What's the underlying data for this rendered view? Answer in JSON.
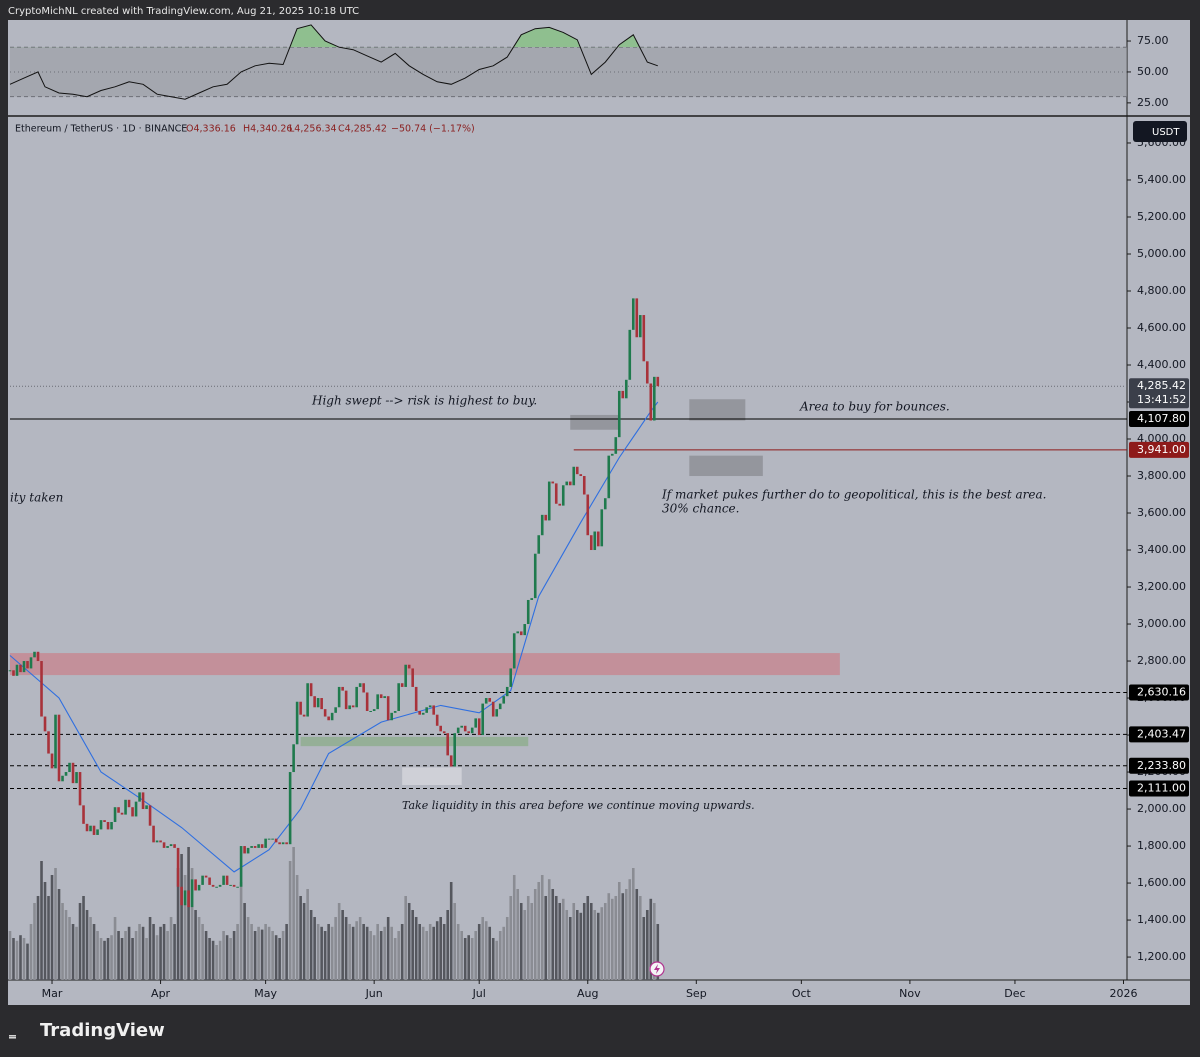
{
  "chart_data": {
    "type": "candlestick",
    "header": "CryptoMichNL created with TradingView.com, Aug 21, 2025 10:18 UTC",
    "symbol": "Ethereum / TetherUS · 1D · BINANCE",
    "ohlc_legend": {
      "open": "O4,336.16",
      "high": "H4,340.26",
      "low": "L4,256.34",
      "close": "C4,285.42",
      "change": "−50.74 (−1.17%)"
    },
    "currency": "USDT",
    "countdown": "13:41:52",
    "brand": "TradingView",
    "up_color": "#1f7a4d",
    "down_color": "#a8323a",
    "closes": [
      2750,
      2720,
      2780,
      2740,
      2800,
      2760,
      2820,
      2850,
      2800,
      2500,
      2420,
      2300,
      2220,
      2510,
      2150,
      2180,
      2200,
      2250,
      2140,
      2200,
      2020,
      1920,
      1880,
      1910,
      1860,
      1890,
      1940,
      1930,
      1890,
      1930,
      2010,
      1980,
      1970,
      2050,
      2010,
      1960,
      2040,
      2090,
      2000,
      2020,
      1910,
      1820,
      1830,
      1820,
      1790,
      1800,
      1810,
      1790,
      1580,
      1480,
      1560,
      1470,
      1620,
      1560,
      1590,
      1640,
      1630,
      1590,
      1580,
      1580,
      1590,
      1640,
      1590,
      1590,
      1580,
      1580,
      1800,
      1760,
      1790,
      1800,
      1790,
      1810,
      1790,
      1840,
      1840,
      1840,
      1820,
      1810,
      1820,
      1810,
      2200,
      2350,
      2580,
      2510,
      2500,
      2680,
      2610,
      2550,
      2600,
      2540,
      2500,
      2480,
      2520,
      2550,
      2660,
      2640,
      2540,
      2560,
      2550,
      2660,
      2680,
      2630,
      2530,
      2530,
      2540,
      2620,
      2600,
      2610,
      2480,
      2520,
      2530,
      2680,
      2660,
      2780,
      2760,
      2660,
      2530,
      2510,
      2520,
      2550,
      2560,
      2510,
      2450,
      2420,
      2410,
      2290,
      2230,
      2410,
      2440,
      2450,
      2420,
      2410,
      2440,
      2490,
      2400,
      2570,
      2600,
      2580,
      2500,
      2540,
      2570,
      2610,
      2660,
      2760,
      2950,
      2960,
      2940,
      3000,
      3130,
      3140,
      3380,
      3480,
      3590,
      3560,
      3770,
      3760,
      3650,
      3640,
      3750,
      3770,
      3750,
      3850,
      3810,
      3800,
      3700,
      3480,
      3400,
      3500,
      3420,
      3620,
      3680,
      3910,
      3920,
      4010,
      4260,
      4220,
      4320,
      4590,
      4760,
      4550,
      4670,
      4420,
      4300,
      4100,
      4336,
      4285.42
    ],
    "volumes": [
      35,
      30,
      28,
      32,
      30,
      26,
      40,
      55,
      60,
      85,
      70,
      60,
      75,
      80,
      65,
      55,
      50,
      45,
      40,
      38,
      55,
      60,
      50,
      45,
      40,
      35,
      30,
      28,
      30,
      32,
      45,
      35,
      30,
      35,
      38,
      30,
      35,
      40,
      38,
      30,
      45,
      40,
      32,
      38,
      40,
      35,
      45,
      40,
      80,
      90,
      75,
      95,
      80,
      50,
      45,
      40,
      35,
      30,
      28,
      25,
      28,
      35,
      32,
      30,
      35,
      40,
      70,
      55,
      45,
      40,
      35,
      38,
      36,
      40,
      38,
      35,
      32,
      30,
      35,
      40,
      85,
      95,
      75,
      60,
      55,
      65,
      50,
      45,
      40,
      38,
      35,
      40,
      38,
      45,
      55,
      50,
      45,
      40,
      38,
      42,
      45,
      40,
      38,
      35,
      32,
      40,
      35,
      38,
      45,
      38,
      30,
      35,
      40,
      60,
      55,
      50,
      45,
      40,
      38,
      35,
      40,
      38,
      42,
      45,
      40,
      50,
      70,
      55,
      40,
      35,
      30,
      32,
      30,
      35,
      40,
      45,
      42,
      38,
      30,
      28,
      35,
      38,
      45,
      60,
      75,
      65,
      55,
      50,
      60,
      55,
      65,
      70,
      75,
      60,
      72,
      65,
      60,
      55,
      58,
      50,
      45,
      55,
      50,
      48,
      55,
      60,
      55,
      50,
      48,
      52,
      55,
      62,
      58,
      60,
      70,
      62,
      65,
      72,
      80,
      65,
      60,
      45,
      50,
      58,
      55,
      40
    ],
    "volume_lim": [
      0,
      100
    ],
    "xlim": [
      0,
      319
    ],
    "xticks": [
      {
        "value": 12,
        "label": "Mar"
      },
      {
        "value": 43,
        "label": "Apr"
      },
      {
        "value": 73,
        "label": "May"
      },
      {
        "value": 104,
        "label": "Jun"
      },
      {
        "value": 134,
        "label": "Jul"
      },
      {
        "value": 165,
        "label": "Aug"
      },
      {
        "value": 196,
        "label": "Sep"
      },
      {
        "value": 226,
        "label": "Oct"
      },
      {
        "value": 257,
        "label": "Nov"
      },
      {
        "value": 287,
        "label": "Dec"
      },
      {
        "value": 318,
        "label": "2026"
      }
    ],
    "ylim": [
      1076,
      5735
    ],
    "yticks": [
      {
        "value": 1200,
        "label": "1,200.00"
      },
      {
        "value": 1400,
        "label": "1,400.00"
      },
      {
        "value": 1600,
        "label": "1,600.00"
      },
      {
        "value": 1800,
        "label": "1,800.00"
      },
      {
        "value": 2000,
        "label": "2,000.00"
      },
      {
        "value": 2200,
        "label": "2,200.00"
      },
      {
        "value": 2400,
        "label": "2,400.00"
      },
      {
        "value": 2600,
        "label": "2,600.00"
      },
      {
        "value": 2800,
        "label": "2,800.00"
      },
      {
        "value": 3000,
        "label": "3,000.00"
      },
      {
        "value": 3200,
        "label": "3,200.00"
      },
      {
        "value": 3400,
        "label": "3,400.00"
      },
      {
        "value": 3600,
        "label": "3,600.00"
      },
      {
        "value": 3800,
        "label": "3,800.00"
      },
      {
        "value": 4000,
        "label": "4,000.00"
      },
      {
        "value": 4200,
        "label": "4,200.00"
      },
      {
        "value": 4400,
        "label": "4,400.00"
      },
      {
        "value": 4600,
        "label": "4,600.00"
      },
      {
        "value": 4800,
        "label": "4,800.00"
      },
      {
        "value": 5000,
        "label": "5,000.00"
      },
      {
        "value": 5200,
        "label": "5,200.00"
      },
      {
        "value": 5400,
        "label": "5,400.00"
      },
      {
        "value": 5600,
        "label": "5,600.00"
      }
    ],
    "ma": {
      "color": "#2f6fe0",
      "x": [
        0,
        14,
        26,
        37,
        49,
        64,
        74,
        83,
        91,
        106,
        123,
        134,
        143,
        151,
        163,
        174,
        183,
        185
      ],
      "values": [
        2830,
        2600,
        2200,
        2060,
        1900,
        1660,
        1780,
        2000,
        2300,
        2470,
        2560,
        2520,
        2640,
        3150,
        3550,
        3900,
        4150,
        4200
      ]
    },
    "rsi": {
      "color": "#111111",
      "fill": "#8fbf8f",
      "ylim": [
        16,
        92
      ],
      "yticks": [
        {
          "value": 25,
          "label": "25.00"
        },
        {
          "value": 50,
          "label": "50.00"
        },
        {
          "value": 75,
          "label": "75.00"
        }
      ],
      "bands": [
        30,
        50,
        70
      ],
      "x": [
        0,
        4,
        8,
        10,
        14,
        18,
        22,
        26,
        30,
        34,
        38,
        42,
        46,
        50,
        54,
        58,
        62,
        66,
        70,
        74,
        78,
        82,
        86,
        90,
        94,
        98,
        102,
        106,
        110,
        114,
        118,
        122,
        126,
        130,
        134,
        138,
        142,
        146,
        150,
        154,
        158,
        162,
        166,
        170,
        174,
        178,
        182,
        185
      ],
      "values": [
        40,
        45,
        50,
        38,
        33,
        32,
        30,
        35,
        38,
        42,
        40,
        32,
        30,
        28,
        33,
        38,
        40,
        50,
        55,
        57,
        56,
        85,
        88,
        75,
        70,
        68,
        63,
        58,
        65,
        55,
        48,
        42,
        40,
        45,
        52,
        55,
        62,
        80,
        85,
        86,
        82,
        76,
        48,
        58,
        72,
        80,
        58,
        55
      ]
    },
    "levels": [
      {
        "value": 4285.42,
        "label": "4,285.42",
        "style": "dotted",
        "color": "#3b3f4a",
        "from": 0
      },
      {
        "value": 4107.8,
        "label": "4,107.80",
        "style": "solid",
        "color": "#000000",
        "from": 0
      },
      {
        "value": 3941,
        "label": "3,941.00",
        "style": "solid",
        "color": "#8e1a1a",
        "from": 161
      },
      {
        "value": 2630.16,
        "label": "2,630.16",
        "style": "dashed",
        "color": "#000000",
        "from": 120
      },
      {
        "value": 2403.47,
        "label": "2,403.47",
        "style": "dashed",
        "color": "#000000",
        "from": 0
      },
      {
        "value": 2233.8,
        "label": "2,233.80",
        "style": "dashed",
        "color": "#000000",
        "from": 0
      },
      {
        "value": 2111,
        "label": "2,111.00",
        "style": "dashed",
        "color": "#000000",
        "from": 0
      }
    ],
    "zones": [
      {
        "y": [
          2724,
          2843
        ],
        "x": [
          0,
          237
        ],
        "color": "#c58a93"
      },
      {
        "y": [
          2340,
          2390
        ],
        "x": [
          83,
          148
        ],
        "color": "#8fae8f"
      },
      {
        "y": [
          2130,
          2225
        ],
        "x": [
          112,
          129
        ],
        "color": "#d3d5da"
      },
      {
        "y": [
          4050,
          4130
        ],
        "x": [
          160,
          174
        ],
        "color": "#8e9097"
      },
      {
        "y": [
          4100,
          4215
        ],
        "x": [
          194,
          210
        ],
        "color": "#8e9097"
      },
      {
        "y": [
          3800,
          3910
        ],
        "x": [
          194,
          215
        ],
        "color": "#8e9097"
      }
    ],
    "annotations": [
      "High swept --> risk is highest to buy.",
      "Area to buy for bounces.",
      "ity taken",
      "If market pukes further do to geopolitical, this is the best area.",
      "30% chance.",
      "Take liquidity in this area before we continue moving upwards."
    ]
  }
}
